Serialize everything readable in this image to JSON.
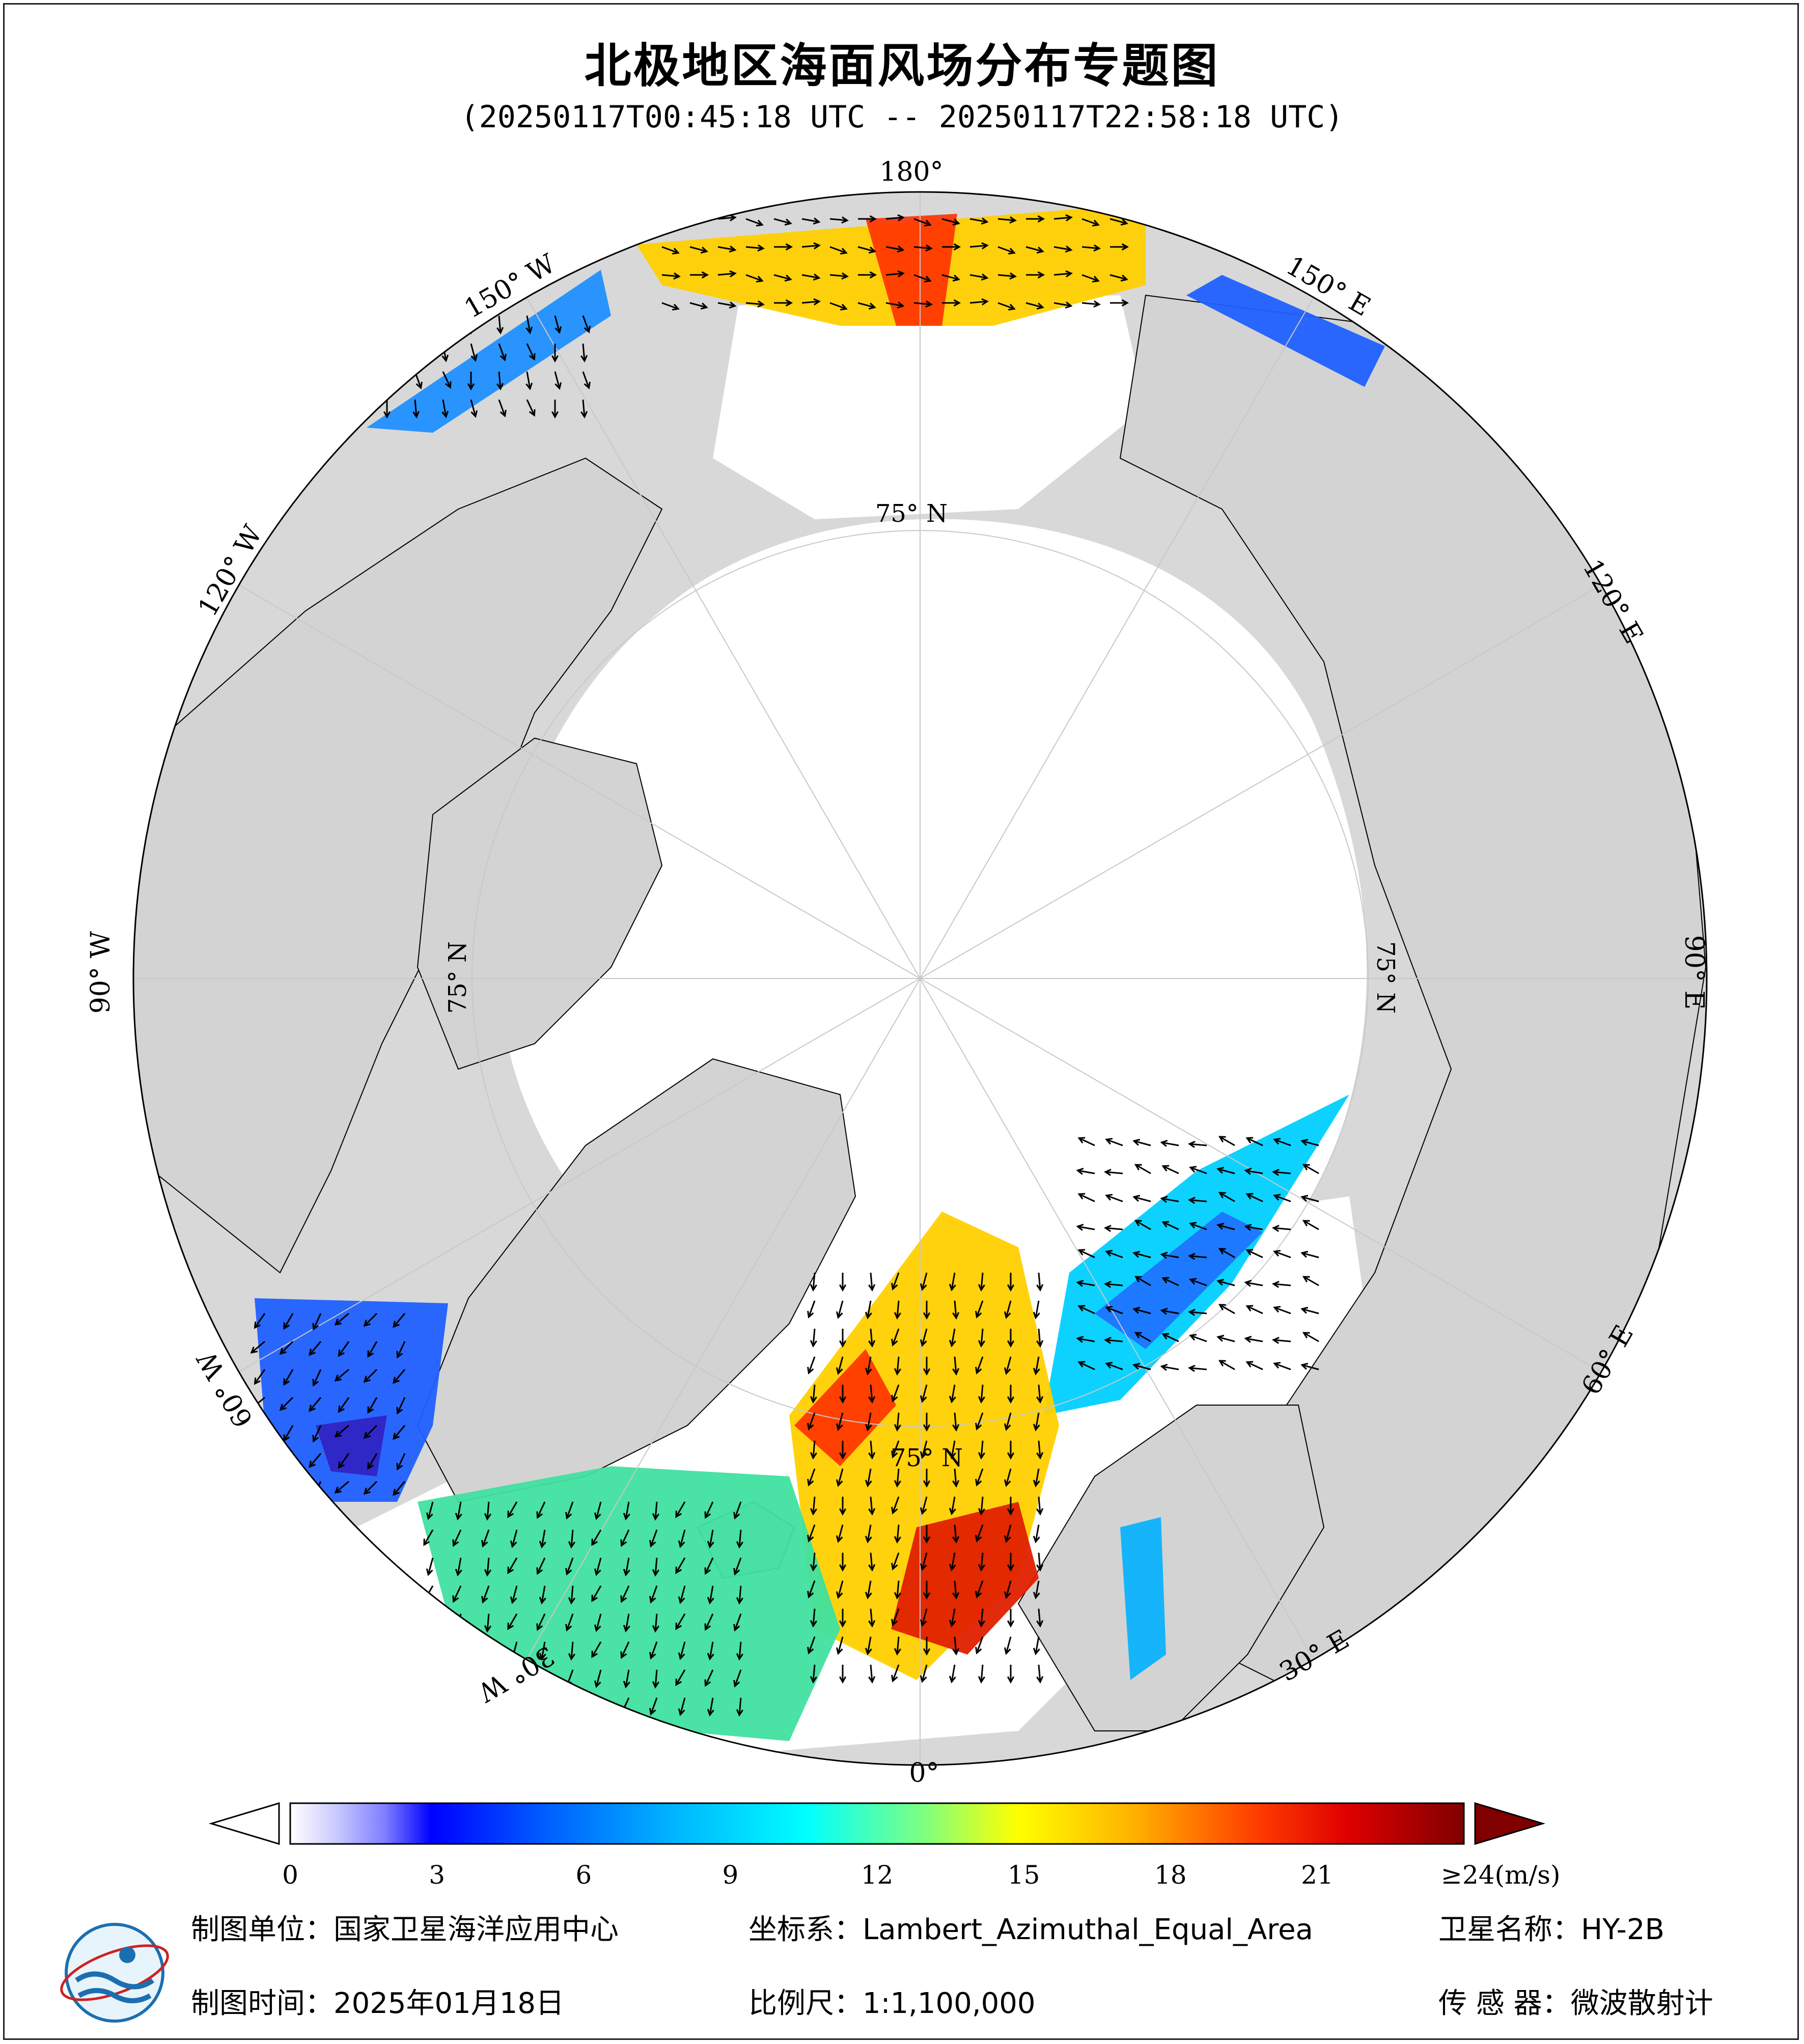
{
  "title": "北极地区海面风场分布专题图",
  "subtitle": "(20250117T00:45:18 UTC -- 20250117T22:58:18 UTC)",
  "map": {
    "projection_labels": {
      "lon_180": "180°",
      "lon_150W": "150° W",
      "lon_150E": "150° E",
      "lon_120W": "120° W",
      "lon_120E": "120° E",
      "lon_90W": "90° W",
      "lon_90E": "90° E",
      "lon_60W": "60° W",
      "lon_60E": "60° E",
      "lon_30W": "30° W",
      "lon_30E": "30° E",
      "lon_0": "0°",
      "lat_75_top": "75° N",
      "lat_75_left": "75° N",
      "lat_75_right": "75° N",
      "lat_75_bottom": "75° N"
    },
    "colors": {
      "ocean_background": "#d8d8d8",
      "ice_white": "#ffffff",
      "land": "#d3d3d3",
      "grid": "#c8c8c8",
      "vector": "#000000"
    }
  },
  "colorbar": {
    "tick_labels": [
      "0",
      "3",
      "6",
      "9",
      "12",
      "15",
      "18",
      "21",
      "≥24(m/s)"
    ],
    "tick_values": [
      0,
      3,
      6,
      9,
      12,
      15,
      18,
      21,
      24
    ],
    "range": [
      0,
      24
    ],
    "unit": "m/s",
    "stops": [
      "#ffffff",
      "#c8c8ff",
      "#8080ff",
      "#0000ff",
      "#0060ff",
      "#00b0ff",
      "#00ffff",
      "#7fff7f",
      "#ffff00",
      "#ffb000",
      "#ff6000",
      "#ff0000",
      "#c00000",
      "#800000"
    ]
  },
  "footer": {
    "org_label": "制图单位：国家卫星海洋应用中心",
    "crs_label": "坐标系：Lambert_Azimuthal_Equal_Area",
    "satellite_label": "卫星名称：HY-2B",
    "date_label": "制图时间：2025年01月18日",
    "scale_label": "比例尺：1:1,100,000",
    "sensor_label": "传 感 器：微波散射计"
  }
}
